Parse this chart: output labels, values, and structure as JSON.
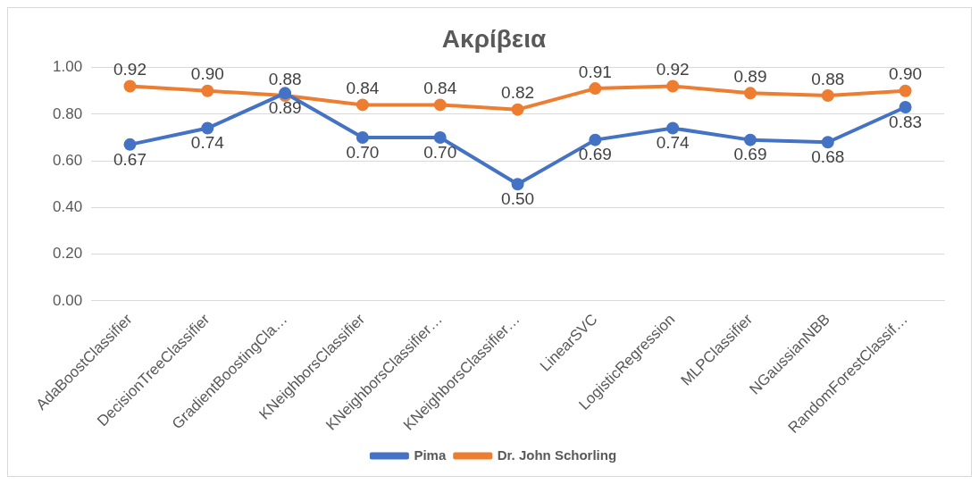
{
  "chart_data": {
    "type": "line",
    "title": "Ακρίβεια",
    "categories": [
      "AdaBoostClassifier",
      "DecisionTreeClassifier",
      "GradientBoostingCla…",
      "KNeighborsClassifier",
      "KNeighborsClassifier…",
      "KNeighborsClassifier…",
      "LinearSVC",
      "LogisticRegression",
      "MLPClassifier",
      "NGaussianNBB",
      "RandomForestClassif…"
    ],
    "series": [
      {
        "name": "Pima",
        "color": "#4472c4",
        "values": [
          0.67,
          0.74,
          0.89,
          0.7,
          0.7,
          0.5,
          0.69,
          0.74,
          0.69,
          0.68,
          0.83
        ],
        "value_labels": [
          "0.67",
          "0.74",
          "0.89",
          "0.70",
          "0.70",
          "0.50",
          "0.69",
          "0.74",
          "0.69",
          "0.68",
          "0.83"
        ]
      },
      {
        "name": "Dr. John Schorling",
        "color": "#ed7d31",
        "values": [
          0.92,
          0.9,
          0.88,
          0.84,
          0.84,
          0.82,
          0.91,
          0.92,
          0.89,
          0.88,
          0.9
        ],
        "value_labels": [
          "0.92",
          "0.90",
          "0.88",
          "0.84",
          "0.84",
          "0.82",
          "0.91",
          "0.92",
          "0.89",
          "0.88",
          "0.90"
        ]
      }
    ],
    "ylim": [
      0,
      1
    ],
    "yticks": [
      {
        "value": 0,
        "label": "0.00"
      },
      {
        "value": 0.2,
        "label": "0.20"
      },
      {
        "value": 0.4,
        "label": "0.40"
      },
      {
        "value": 0.6,
        "label": "0.60"
      },
      {
        "value": 0.8,
        "label": "0.80"
      },
      {
        "value": 1,
        "label": "1.00"
      }
    ],
    "grid": "y",
    "legend": "bottom",
    "marker": "circle",
    "line_style": "solid"
  }
}
